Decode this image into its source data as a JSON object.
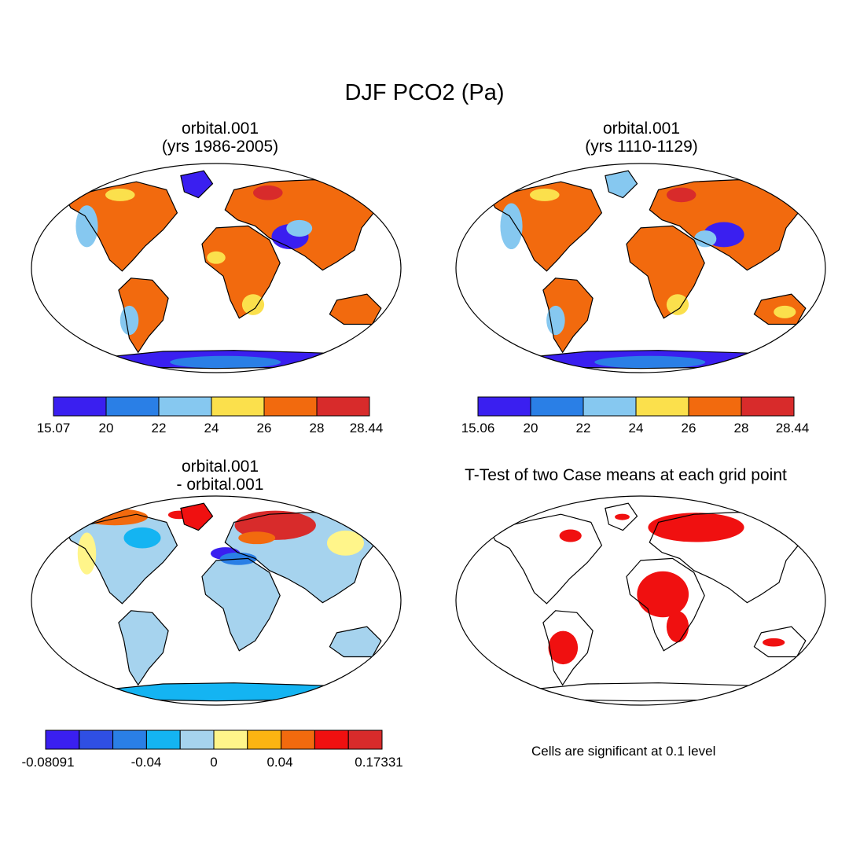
{
  "title": "DJF PCO2 (Pa)",
  "panels": [
    {
      "id": "p1",
      "title_line1": "orbital.001",
      "title_line2": "(yrs 1986-2005)"
    },
    {
      "id": "p2",
      "title_line1": "orbital.001",
      "title_line2": "(yrs 1110-1129)"
    },
    {
      "id": "p3",
      "title_line1": "orbital.001",
      "title_line2": "- orbital.001"
    },
    {
      "id": "p4",
      "title_line1": "T-Test of two Case means at each grid point",
      "title_line2": ""
    }
  ],
  "colorbars": [
    {
      "id": "cb1",
      "colors": [
        "#3a1ff0",
        "#2a7fe6",
        "#86c8f0",
        "#fbe04c",
        "#f26a0e",
        "#d82b2b"
      ],
      "labels": [
        "15.07",
        "20",
        "22",
        "24",
        "26",
        "28",
        "28.44"
      ]
    },
    {
      "id": "cb2",
      "colors": [
        "#3a1ff0",
        "#2a7fe6",
        "#86c8f0",
        "#fbe04c",
        "#f26a0e",
        "#d82b2b"
      ],
      "labels": [
        "15.06",
        "20",
        "22",
        "24",
        "26",
        "28",
        "28.44"
      ]
    },
    {
      "id": "cb3",
      "colors": [
        "#3a1ff0",
        "#2f4fe3",
        "#2a7fe6",
        "#14b4f2",
        "#a6d3ee",
        "#fff58a",
        "#fbb412",
        "#f26a0e",
        "#f01010",
        "#d82b2b"
      ],
      "labels": [
        "-0.08091",
        "-0.04",
        "0",
        "0.04",
        "0.17331"
      ]
    }
  ],
  "significance_note": "Cells are significant at 0.1 level",
  "colors": {
    "land_p1": "#f26a0e",
    "land_p2": "#f26a0e",
    "land_p3": "#a6d3ee",
    "significant": "#f01010",
    "outline": "#000000"
  }
}
